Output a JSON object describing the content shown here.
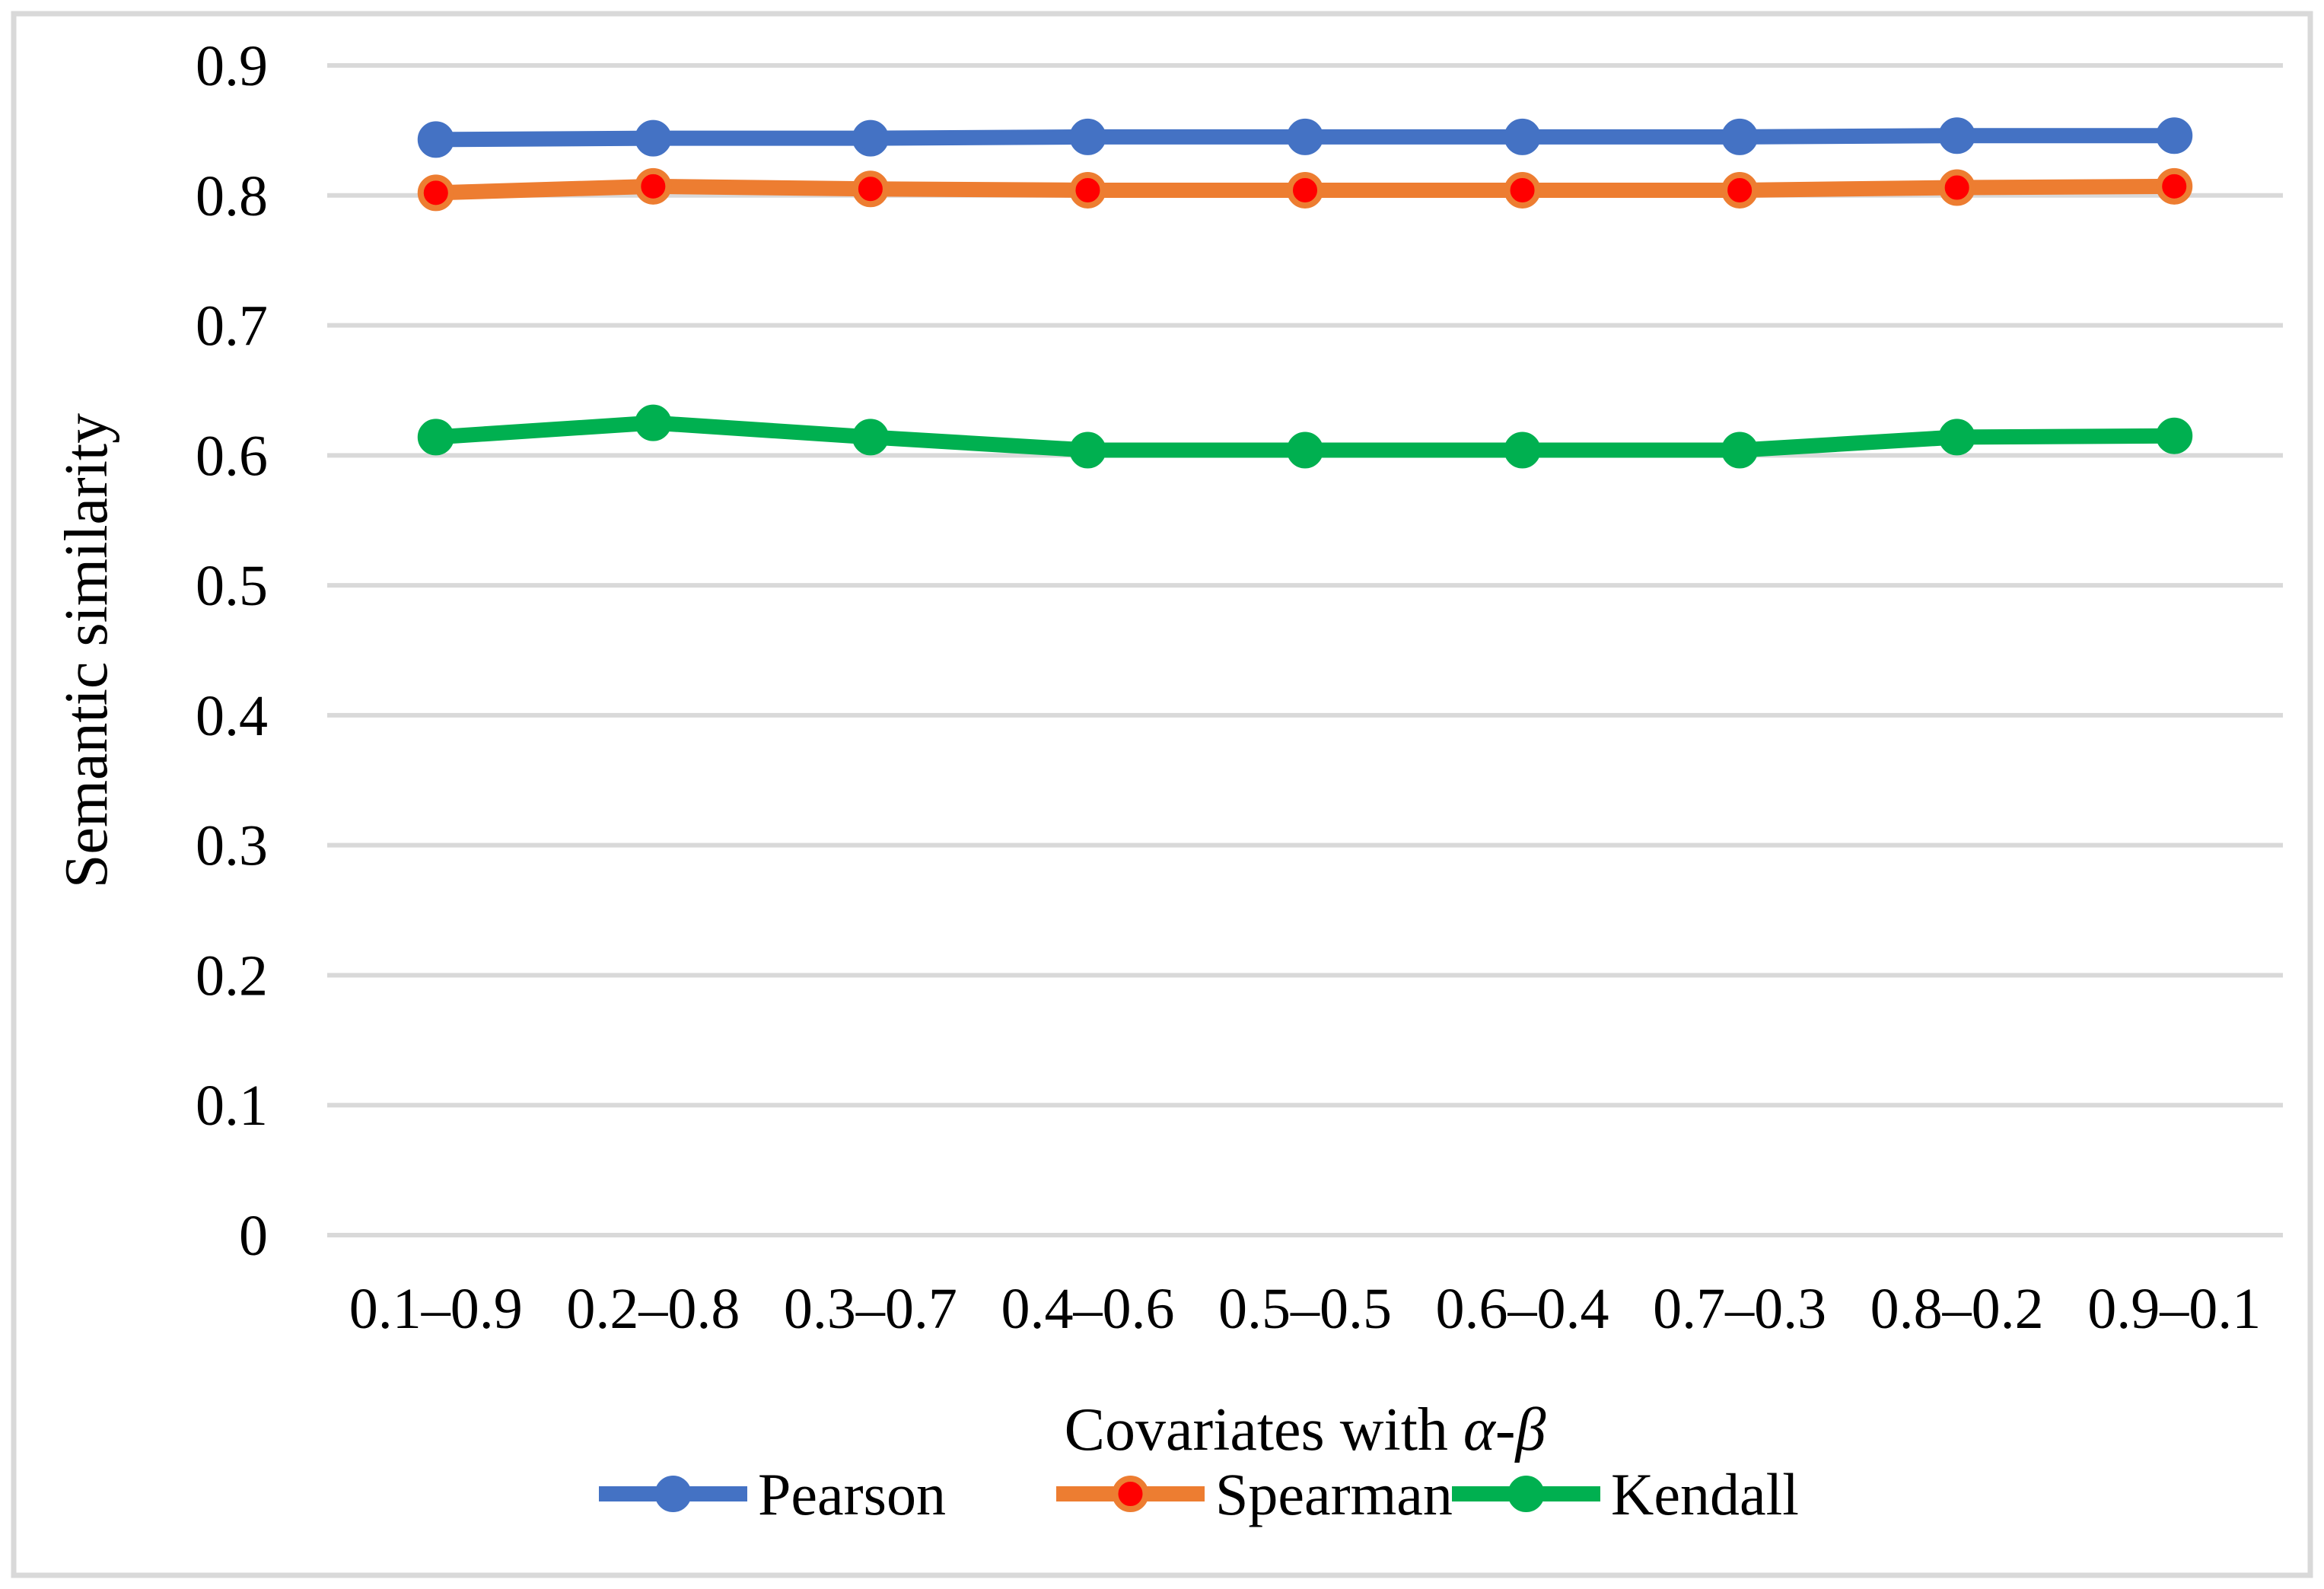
{
  "figure": {
    "background": "#FFFFFF",
    "border_color": "#D9D9D9"
  },
  "chart_data": {
    "type": "line",
    "categories": [
      "0.1–0.9",
      "0.2–0.8",
      "0.3–0.7",
      "0.4–0.6",
      "0.5–0.5",
      "0.6–0.4",
      "0.7–0.3",
      "0.8–0.2",
      "0.9–0.1"
    ],
    "series": [
      {
        "name": "Pearson",
        "line_color": "#4472C4",
        "marker_fill": "#4472C4",
        "marker_stroke": "#4472C4",
        "values": [
          0.843,
          0.844,
          0.844,
          0.845,
          0.845,
          0.845,
          0.845,
          0.846,
          0.846
        ]
      },
      {
        "name": "Spearman",
        "line_color": "#ED7D31",
        "marker_fill": "#FF0000",
        "marker_stroke": "#ED7D31",
        "values": [
          0.802,
          0.807,
          0.805,
          0.804,
          0.804,
          0.804,
          0.804,
          0.806,
          0.807
        ]
      },
      {
        "name": "Kendall",
        "line_color": "#00B050",
        "marker_fill": "#00B050",
        "marker_stroke": "#00B050",
        "values": [
          0.614,
          0.625,
          0.614,
          0.604,
          0.604,
          0.604,
          0.604,
          0.614,
          0.615
        ]
      }
    ],
    "xlabel_prefix": "Covariates with ",
    "xlabel_italic": "α-β",
    "ylabel": "Semantic similarity",
    "ylim": [
      0,
      0.9
    ],
    "ytick_step": 0.1,
    "yticks": [
      "0",
      "0.1",
      "0.2",
      "0.3",
      "0.4",
      "0.5",
      "0.6",
      "0.7",
      "0.8",
      "0.9"
    ],
    "grid": true,
    "gridline_color": "#D9D9D9",
    "legend_position": "bottom",
    "legend_labels": [
      "Pearson",
      "Spearman",
      "Kendall"
    ]
  }
}
